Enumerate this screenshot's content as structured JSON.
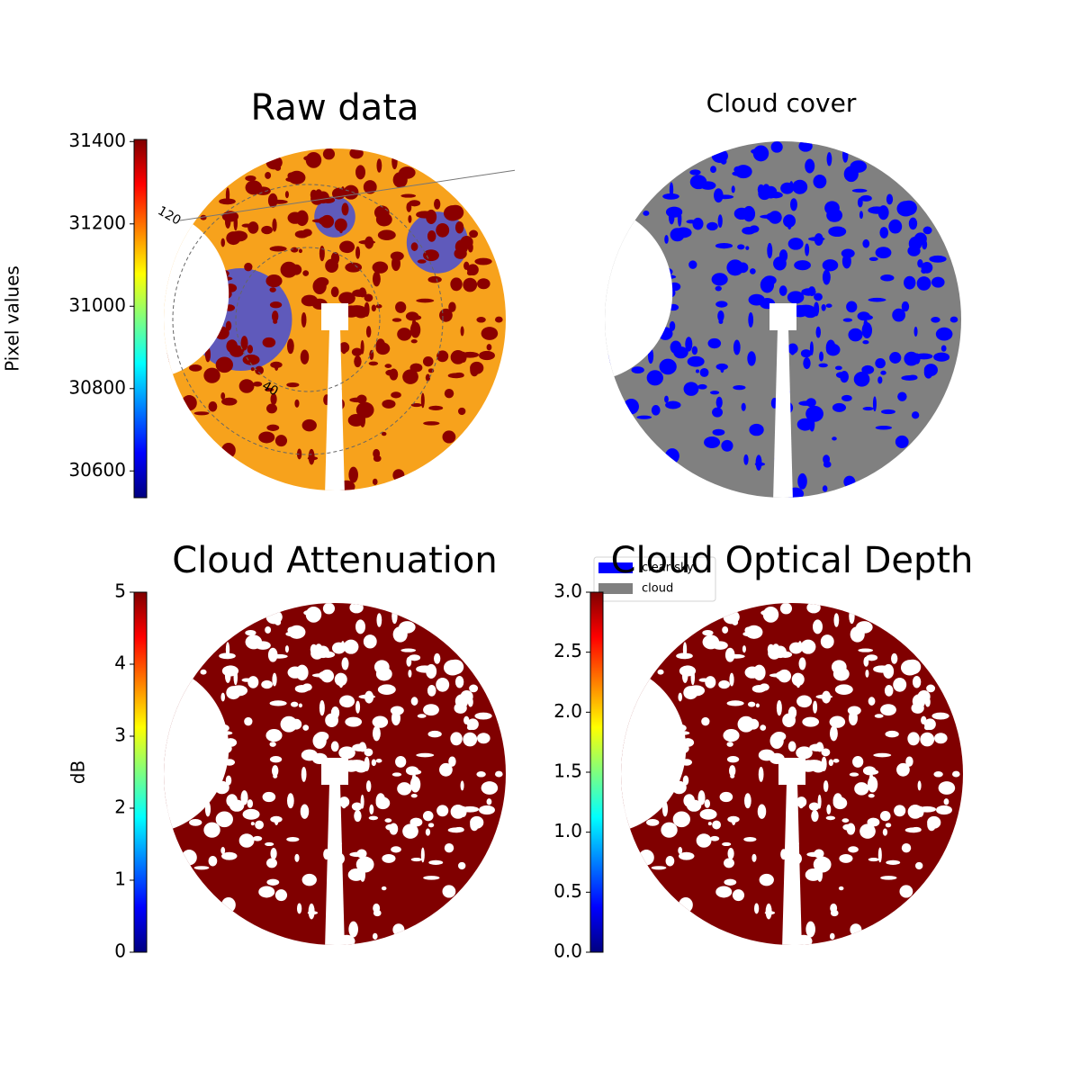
{
  "chart_data": [
    {
      "type": "image",
      "title": "Raw data",
      "colorbar_label": "Pixel values",
      "colormap": "jet",
      "ylim": [
        30535,
        31405
      ],
      "yticks": [
        30600,
        30800,
        31000,
        31200,
        31400
      ],
      "annotations": [
        "120",
        "40"
      ]
    },
    {
      "type": "image",
      "title": "Cloud cover",
      "legend": [
        {
          "name": "clear sky",
          "color": "#0000ff"
        },
        {
          "name": "cloud",
          "color": "#808080"
        }
      ]
    },
    {
      "type": "image",
      "title": "Cloud Attenuation",
      "colorbar_label": "dB",
      "colormap": "jet",
      "ylim": [
        0,
        5
      ],
      "yticks": [
        0,
        1,
        2,
        3,
        4,
        5
      ]
    },
    {
      "type": "image",
      "title": "Cloud Optical Depth",
      "colormap": "jet",
      "ylim": [
        0,
        3
      ],
      "yticks": [
        {
          "value": 0,
          "label": "0.0"
        },
        {
          "value": 0.5,
          "label": "0.5"
        },
        {
          "value": 1,
          "label": "1.0"
        },
        {
          "value": 1.5,
          "label": "1.5"
        },
        {
          "value": 2,
          "label": "2.0"
        },
        {
          "value": 2.5,
          "label": "2.5"
        },
        {
          "value": 3,
          "label": "3.0"
        }
      ]
    }
  ]
}
